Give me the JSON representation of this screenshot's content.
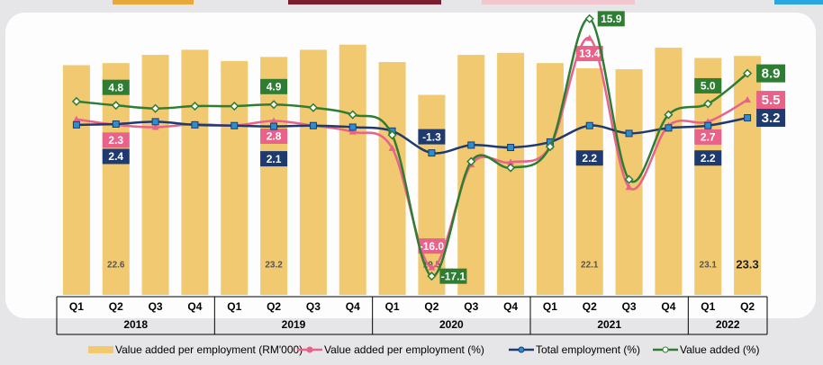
{
  "chart_data": {
    "type": "bar_line",
    "categories": [
      "Q1",
      "Q2",
      "Q3",
      "Q4",
      "Q1",
      "Q2",
      "Q3",
      "Q4",
      "Q1",
      "Q2",
      "Q3",
      "Q4",
      "Q1",
      "Q2",
      "Q3",
      "Q4",
      "Q1",
      "Q2"
    ],
    "x_groups": [
      {
        "label": "2018",
        "count": 4
      },
      {
        "label": "2019",
        "count": 4
      },
      {
        "label": "2020",
        "count": 4
      },
      {
        "label": "2021",
        "count": 4
      },
      {
        "label": "2022",
        "count": 2
      }
    ],
    "ylim": [
      0,
      27
    ],
    "y2lim": [
      -19.5,
      16
    ],
    "series": [
      {
        "name": "Value added per employment (RM'000)",
        "type": "bar",
        "color": "#f0c970",
        "values": [
          22.4,
          22.6,
          23.4,
          23.9,
          22.8,
          23.2,
          23.9,
          24.4,
          22.7,
          19.5,
          23.4,
          23.6,
          22.6,
          22.1,
          22.0,
          24.1,
          23.1,
          23.3
        ],
        "value_labels": [
          null,
          "22.6",
          null,
          null,
          null,
          "23.2",
          null,
          null,
          null,
          "19.5",
          null,
          null,
          null,
          "22.1",
          null,
          null,
          "23.1",
          "23.3"
        ]
      },
      {
        "name": "Value added per employment (%)",
        "type": "line",
        "axis": "y2",
        "color": "#e8628a",
        "marker": "triangle",
        "values": [
          3.0,
          2.3,
          2.0,
          2.4,
          2.2,
          2.8,
          2.2,
          1.4,
          -0.7,
          -16.0,
          -2.8,
          -2.5,
          -0.5,
          13.4,
          -5.7,
          2.2,
          2.7,
          5.5
        ],
        "value_labels": [
          null,
          "2.3",
          null,
          null,
          null,
          "2.8",
          null,
          null,
          null,
          "-16.0",
          null,
          null,
          null,
          "13.4",
          null,
          null,
          "2.7",
          "5.5"
        ]
      },
      {
        "name": "Total employment (%)",
        "type": "line",
        "axis": "y2",
        "color": "#1f3a6e",
        "marker": "square",
        "values": [
          2.3,
          2.4,
          2.7,
          2.3,
          2.2,
          2.1,
          2.2,
          2.0,
          1.5,
          -1.3,
          -0.3,
          -0.6,
          0.1,
          2.2,
          1.2,
          1.9,
          2.2,
          3.2
        ],
        "value_labels": [
          null,
          "2.4",
          null,
          null,
          null,
          "2.1",
          null,
          null,
          null,
          "-1.3",
          null,
          null,
          null,
          "2.2",
          null,
          null,
          "2.2",
          "3.2"
        ]
      },
      {
        "name": "Value added  (%)",
        "type": "line",
        "axis": "y2",
        "color": "#2e7d32",
        "marker": "diamond",
        "values": [
          5.3,
          4.8,
          4.4,
          4.7,
          4.7,
          4.9,
          4.5,
          3.6,
          1.0,
          -17.1,
          -2.4,
          -3.2,
          -0.5,
          15.9,
          -4.7,
          3.6,
          5.0,
          8.9
        ],
        "value_labels": [
          null,
          "4.8",
          null,
          null,
          null,
          "4.9",
          null,
          null,
          null,
          "-17.1",
          null,
          null,
          null,
          "15.9",
          null,
          null,
          "5.0",
          "8.9"
        ]
      }
    ]
  }
}
